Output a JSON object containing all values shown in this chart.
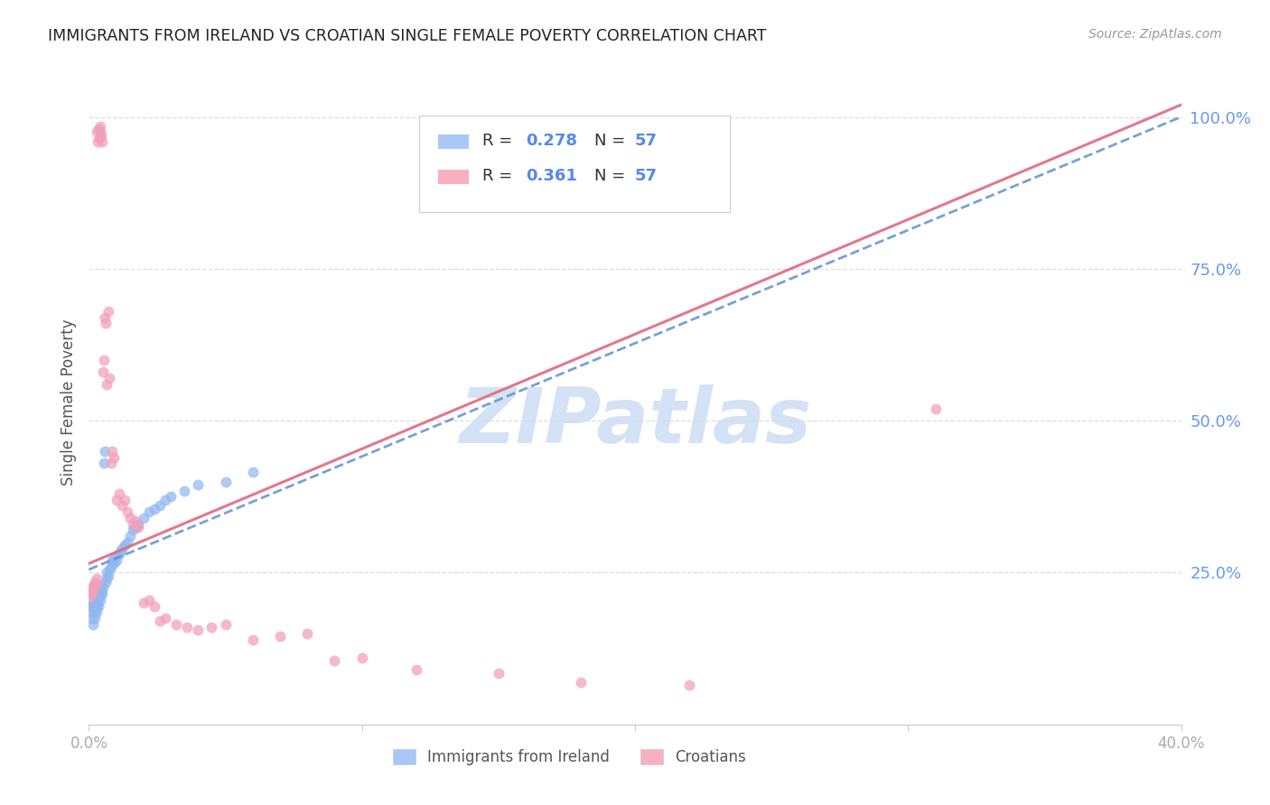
{
  "title": "IMMIGRANTS FROM IRELAND VS CROATIAN SINGLE FEMALE POVERTY CORRELATION CHART",
  "source": "Source: ZipAtlas.com",
  "ylabel": "Single Female Poverty",
  "ytick_labels": [
    "",
    "25.0%",
    "50.0%",
    "75.0%",
    "100.0%"
  ],
  "ytick_vals": [
    0.0,
    0.25,
    0.5,
    0.75,
    1.0
  ],
  "xtick_vals": [
    0.0,
    0.1,
    0.2,
    0.3,
    0.4
  ],
  "xtick_labels": [
    "0.0%",
    "",
    "",
    "",
    "40.0%"
  ],
  "legend_color1": "#a8c8f8",
  "legend_color2": "#f8b0c0",
  "ireland_color": "#90b8f0",
  "croatian_color": "#f0a0b8",
  "ireland_line_color": "#6090d0",
  "croatian_line_color": "#e06880",
  "watermark_text": "ZIPatlas",
  "watermark_color": "#d0dff5",
  "background_color": "#ffffff",
  "grid_color": "#dddddd",
  "ytick_color": "#6699ee",
  "xtick_color": "#aaaaaa",
  "title_color": "#222222",
  "source_color": "#999999",
  "legend_text_color": "#333333",
  "legend_num_color": "#5588ee",
  "ireland_x": [
    0.0008,
    0.001,
    0.0012,
    0.0015,
    0.0015,
    0.0018,
    0.002,
    0.0022,
    0.0022,
    0.0025,
    0.0025,
    0.0028,
    0.0028,
    0.003,
    0.003,
    0.0032,
    0.0035,
    0.0035,
    0.0038,
    0.004,
    0.004,
    0.0042,
    0.0045,
    0.0045,
    0.0048,
    0.005,
    0.0055,
    0.0058,
    0.006,
    0.0065,
    0.0065,
    0.007,
    0.0075,
    0.008,
    0.0085,
    0.009,
    0.0095,
    0.01,
    0.011,
    0.0115,
    0.012,
    0.013,
    0.014,
    0.015,
    0.016,
    0.017,
    0.018,
    0.02,
    0.022,
    0.024,
    0.026,
    0.028,
    0.03,
    0.035,
    0.04,
    0.05,
    0.06
  ],
  "ireland_y": [
    0.195,
    0.185,
    0.175,
    0.2,
    0.165,
    0.195,
    0.185,
    0.19,
    0.175,
    0.2,
    0.21,
    0.195,
    0.185,
    0.2,
    0.22,
    0.205,
    0.215,
    0.195,
    0.21,
    0.205,
    0.22,
    0.215,
    0.22,
    0.23,
    0.215,
    0.225,
    0.43,
    0.45,
    0.235,
    0.24,
    0.25,
    0.245,
    0.255,
    0.26,
    0.27,
    0.265,
    0.275,
    0.27,
    0.28,
    0.285,
    0.29,
    0.295,
    0.3,
    0.31,
    0.32,
    0.325,
    0.33,
    0.34,
    0.35,
    0.355,
    0.36,
    0.37,
    0.375,
    0.385,
    0.395,
    0.4,
    0.415
  ],
  "croatian_x": [
    0.0005,
    0.0008,
    0.001,
    0.0012,
    0.0015,
    0.0018,
    0.002,
    0.0022,
    0.0025,
    0.0028,
    0.003,
    0.0032,
    0.0035,
    0.0038,
    0.004,
    0.0042,
    0.0045,
    0.0048,
    0.005,
    0.0055,
    0.0058,
    0.006,
    0.0065,
    0.007,
    0.0075,
    0.008,
    0.0085,
    0.009,
    0.01,
    0.011,
    0.012,
    0.013,
    0.014,
    0.015,
    0.016,
    0.017,
    0.018,
    0.02,
    0.022,
    0.024,
    0.026,
    0.028,
    0.032,
    0.036,
    0.04,
    0.045,
    0.05,
    0.06,
    0.07,
    0.08,
    0.09,
    0.1,
    0.12,
    0.15,
    0.18,
    0.22,
    0.31
  ],
  "croatian_y": [
    0.21,
    0.22,
    0.215,
    0.225,
    0.22,
    0.23,
    0.225,
    0.235,
    0.23,
    0.24,
    0.975,
    0.96,
    0.98,
    0.965,
    0.975,
    0.985,
    0.97,
    0.96,
    0.58,
    0.6,
    0.67,
    0.66,
    0.56,
    0.68,
    0.57,
    0.43,
    0.45,
    0.44,
    0.37,
    0.38,
    0.36,
    0.37,
    0.35,
    0.34,
    0.33,
    0.335,
    0.325,
    0.2,
    0.205,
    0.195,
    0.17,
    0.175,
    0.165,
    0.16,
    0.155,
    0.16,
    0.165,
    0.14,
    0.145,
    0.15,
    0.105,
    0.11,
    0.09,
    0.085,
    0.07,
    0.065,
    0.52
  ]
}
